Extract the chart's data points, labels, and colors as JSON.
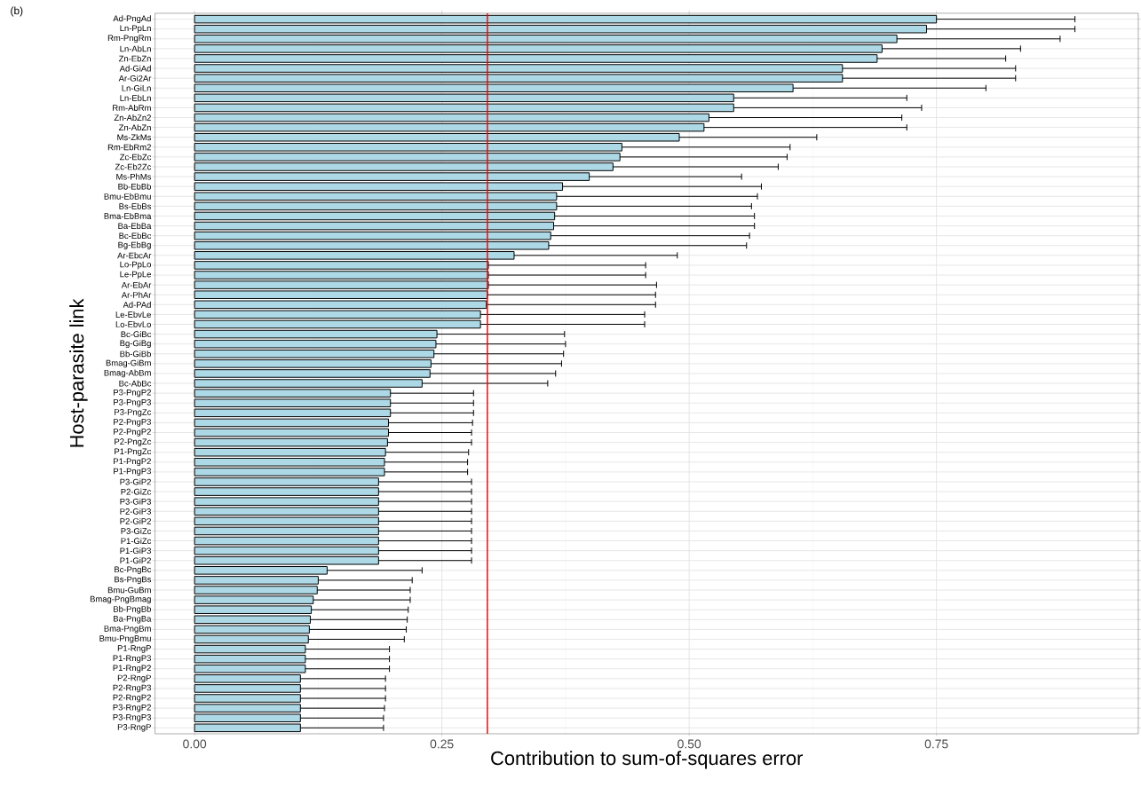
{
  "chart_data": {
    "type": "bar",
    "orientation": "horizontal",
    "xlabel": "Contribution to sum-of-squares error",
    "ylabel": "Host-parasite link",
    "annotations": [
      "(b)"
    ],
    "categories": [
      "Ad-PngAd",
      "Ln-PpLn",
      "Rm-PngRm",
      "Ln-AbLn",
      "Zn-EbZn",
      "Ad-GiAd",
      "Ar-Gi2Ar",
      "Ln-GiLn",
      "Ln-EbLn",
      "Rm-AbRm",
      "Zn-AbZn2",
      "Zn-AbZn",
      "Ms-ZkMs",
      "Rm-EbRm2",
      "Zc-EbZc",
      "Zc-Eb2Zc",
      "Ms-PhMs",
      "Bb-EbBb",
      "Bmu-EbBmu",
      "Bs-EbBs",
      "Bma-EbBma",
      "Ba-EbBa",
      "Bc-EbBc",
      "Bg-EbBg",
      "Ar-EbcAr",
      "Lo-PpLo",
      "Le-PpLe",
      "Ar-EbAr",
      "Ar-PhAr",
      "Ad-PAd",
      "Le-EbvLe",
      "Lo-EbvLo",
      "Bc-GiBc",
      "Bg-GiBg",
      "Bb-GiBb",
      "Bmag-GiBm",
      "Bmag-AbBm",
      "Bc-AbBc",
      "P3-PngP2",
      "P3-PngP3",
      "P3-PngZc",
      "P2-PngP3",
      "P2-PngP2",
      "P2-PngZc",
      "P1-PngZc",
      "P1-PngP2",
      "P1-PngP3",
      "P3-GiP2",
      "P2-GiZc",
      "P3-GiP3",
      "P2-GiP3",
      "P2-GiP2",
      "P3-GiZc",
      "P1-GiZc",
      "P1-GiP3",
      "P1-GiP2",
      "Bc-PngBc",
      "Bs-PngBs",
      "Bmu-GuBm",
      "Bmag-PngBmag",
      "Bb-PngBb",
      "Ba-PngBa",
      "Bma-PngBm",
      "Bmu-PngBmu",
      "P1-RngP",
      "P1-RngP3",
      "P1-RngP2",
      "P2-RngP",
      "P2-RngP3",
      "P2-RngP2",
      "P3-RngP2",
      "P3-RngP3",
      "P3-RngP"
    ],
    "values": [
      0.75,
      0.74,
      0.71,
      0.695,
      0.69,
      0.655,
      0.655,
      0.605,
      0.545,
      0.545,
      0.52,
      0.515,
      0.49,
      0.432,
      0.43,
      0.423,
      0.399,
      0.372,
      0.366,
      0.366,
      0.364,
      0.363,
      0.36,
      0.358,
      0.323,
      0.297,
      0.297,
      0.297,
      0.296,
      0.295,
      0.289,
      0.289,
      0.245,
      0.244,
      0.242,
      0.239,
      0.238,
      0.23,
      0.198,
      0.198,
      0.198,
      0.196,
      0.196,
      0.195,
      0.193,
      0.192,
      0.192,
      0.186,
      0.186,
      0.186,
      0.186,
      0.186,
      0.186,
      0.186,
      0.186,
      0.186,
      0.134,
      0.125,
      0.124,
      0.12,
      0.118,
      0.117,
      0.116,
      0.115,
      0.112,
      0.112,
      0.112,
      0.107,
      0.107,
      0.107,
      0.107,
      0.107,
      0.107
    ],
    "errors": [
      [
        0.75,
        0.89
      ],
      [
        0.74,
        0.89
      ],
      [
        0.71,
        0.875
      ],
      [
        0.695,
        0.835
      ],
      [
        0.69,
        0.82
      ],
      [
        0.655,
        0.83
      ],
      [
        0.655,
        0.83
      ],
      [
        0.605,
        0.8
      ],
      [
        0.545,
        0.72
      ],
      [
        0.545,
        0.735
      ],
      [
        0.52,
        0.715
      ],
      [
        0.515,
        0.72
      ],
      [
        0.49,
        0.629
      ],
      [
        0.432,
        0.602
      ],
      [
        0.43,
        0.599
      ],
      [
        0.423,
        0.59
      ],
      [
        0.399,
        0.553
      ],
      [
        0.372,
        0.573
      ],
      [
        0.366,
        0.569
      ],
      [
        0.366,
        0.563
      ],
      [
        0.364,
        0.566
      ],
      [
        0.363,
        0.566
      ],
      [
        0.36,
        0.561
      ],
      [
        0.358,
        0.558
      ],
      [
        0.323,
        0.488
      ],
      [
        0.297,
        0.456
      ],
      [
        0.297,
        0.456
      ],
      [
        0.297,
        0.467
      ],
      [
        0.296,
        0.466
      ],
      [
        0.295,
        0.466
      ],
      [
        0.289,
        0.455
      ],
      [
        0.289,
        0.455
      ],
      [
        0.245,
        0.374
      ],
      [
        0.244,
        0.375
      ],
      [
        0.242,
        0.373
      ],
      [
        0.239,
        0.371
      ],
      [
        0.238,
        0.365
      ],
      [
        0.23,
        0.357
      ],
      [
        0.198,
        0.282
      ],
      [
        0.198,
        0.282
      ],
      [
        0.198,
        0.282
      ],
      [
        0.196,
        0.281
      ],
      [
        0.196,
        0.28
      ],
      [
        0.195,
        0.28
      ],
      [
        0.193,
        0.277
      ],
      [
        0.192,
        0.276
      ],
      [
        0.192,
        0.276
      ],
      [
        0.186,
        0.28
      ],
      [
        0.186,
        0.28
      ],
      [
        0.186,
        0.28
      ],
      [
        0.186,
        0.28
      ],
      [
        0.186,
        0.28
      ],
      [
        0.186,
        0.28
      ],
      [
        0.186,
        0.28
      ],
      [
        0.186,
        0.28
      ],
      [
        0.186,
        0.28
      ],
      [
        0.134,
        0.23
      ],
      [
        0.125,
        0.22
      ],
      [
        0.124,
        0.218
      ],
      [
        0.12,
        0.218
      ],
      [
        0.118,
        0.216
      ],
      [
        0.117,
        0.215
      ],
      [
        0.116,
        0.214
      ],
      [
        0.115,
        0.212
      ],
      [
        0.112,
        0.197
      ],
      [
        0.112,
        0.197
      ],
      [
        0.112,
        0.197
      ],
      [
        0.107,
        0.193
      ],
      [
        0.107,
        0.193
      ],
      [
        0.107,
        0.193
      ],
      [
        0.107,
        0.192
      ],
      [
        0.107,
        0.191
      ],
      [
        0.107,
        0.191
      ]
    ],
    "color": "#add8e6",
    "xlim": [
      -0.04,
      0.954
    ],
    "xticks": [
      {
        "value": 0,
        "label": "0.00"
      },
      {
        "value": 0.25,
        "label": "0.25"
      },
      {
        "value": 0.5,
        "label": "0.50"
      },
      {
        "value": 0.75,
        "label": "0.75"
      }
    ],
    "ref_lines": [
      {
        "axis": "x",
        "value": 0.296,
        "color": "#ff0000"
      }
    ],
    "grid": true
  }
}
